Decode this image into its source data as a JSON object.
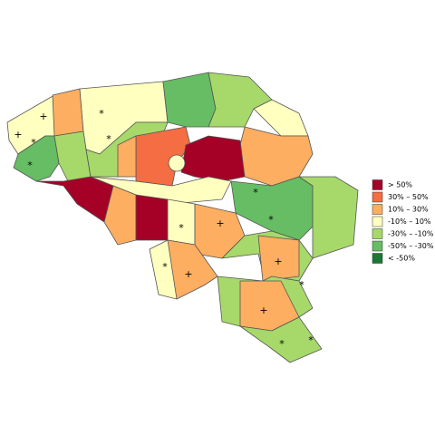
{
  "legend": [
    {
      "label": "> 50%",
      "color": "#a50026"
    },
    {
      "label": "30%  –  50%",
      "color": "#f46d43"
    },
    {
      "label": "10%  –  30%",
      "color": "#fdae61"
    },
    {
      "label": "-10%  –  10%",
      "color": "#ffffbf"
    },
    {
      "label": "-30%  –  -10%",
      "color": "#a6d96a"
    },
    {
      "label": "-50%  –  -30%",
      "color": "#66bd63"
    },
    {
      "label": "< -50%",
      "color": "#1a7837"
    }
  ],
  "markers": [
    "*",
    "+"
  ]
}
